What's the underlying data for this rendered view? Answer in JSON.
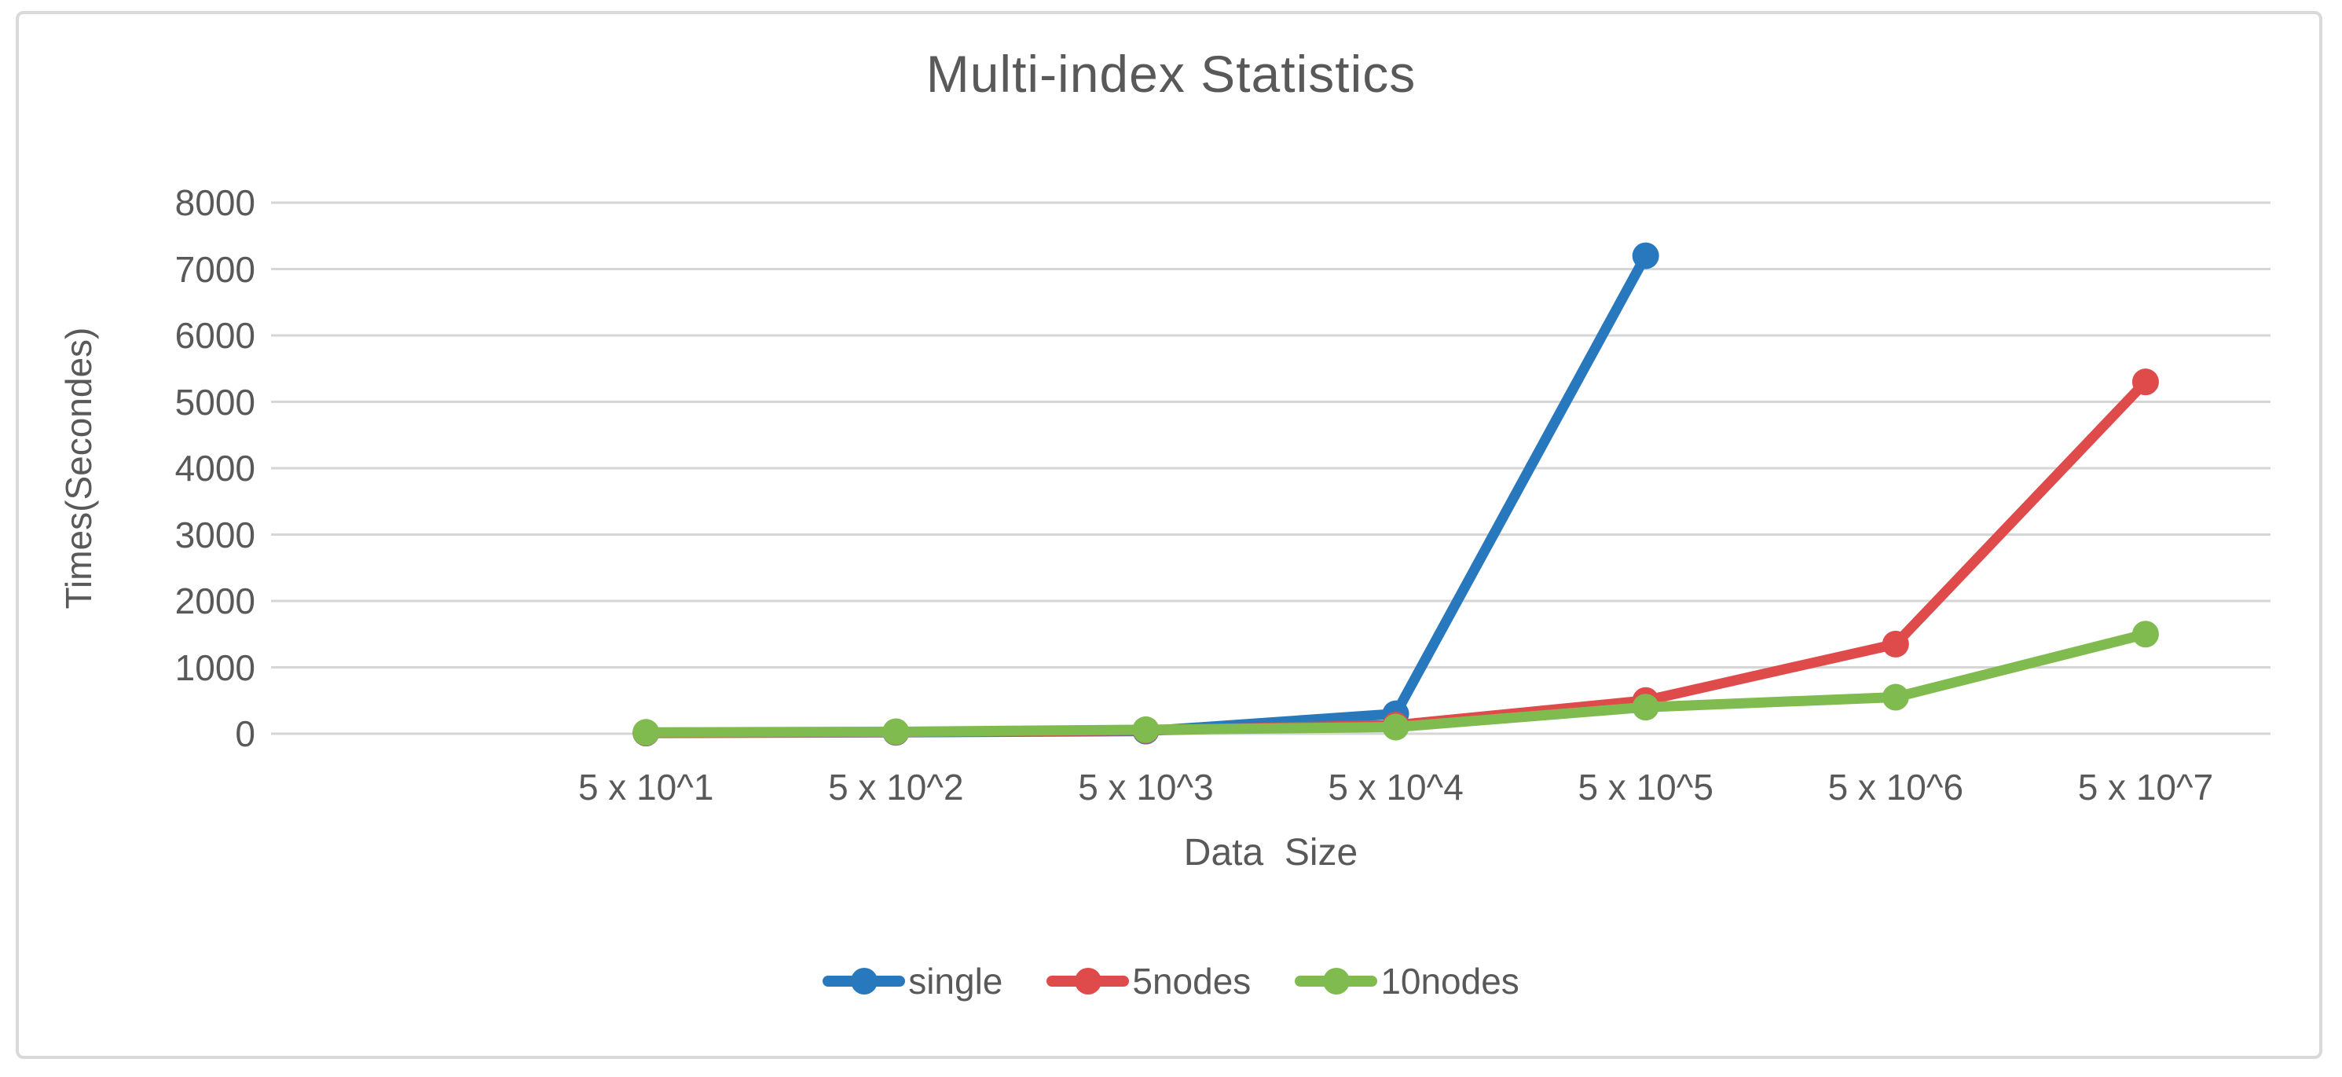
{
  "page": {
    "background_color": "#ffffff",
    "border_color": "#d9d9d9"
  },
  "chart_data": {
    "type": "line",
    "title": "Multi-index Statistics",
    "xlabel": "Data  Size",
    "ylabel": "Times(Secondes)",
    "categories": [
      "5 x 10^1",
      "5 x 10^2",
      "5 x 10^3",
      "5 x 10^4",
      "5 x 10^5",
      "5 x 10^6",
      "5 x 10^7"
    ],
    "series": [
      {
        "name": "single",
        "color": "#2878be",
        "values": [
          10,
          20,
          40,
          300,
          7200,
          null,
          null
        ]
      },
      {
        "name": "5nodes",
        "color": "#df4b4b",
        "values": [
          15,
          25,
          50,
          130,
          500,
          1350,
          5300
        ]
      },
      {
        "name": "10nodes",
        "color": "#7fbb4f",
        "values": [
          20,
          30,
          60,
          100,
          400,
          550,
          1500
        ]
      }
    ],
    "ylim": [
      0,
      8000
    ],
    "yticks": [
      0,
      1000,
      2000,
      3000,
      4000,
      5000,
      6000,
      7000,
      8000
    ],
    "grid": "horizontal",
    "gridline_color": "#d6d6d6",
    "text_color": "#595959",
    "legend_position": "bottom",
    "x_layout": {
      "slots": 8,
      "first_slot": 1
    }
  }
}
